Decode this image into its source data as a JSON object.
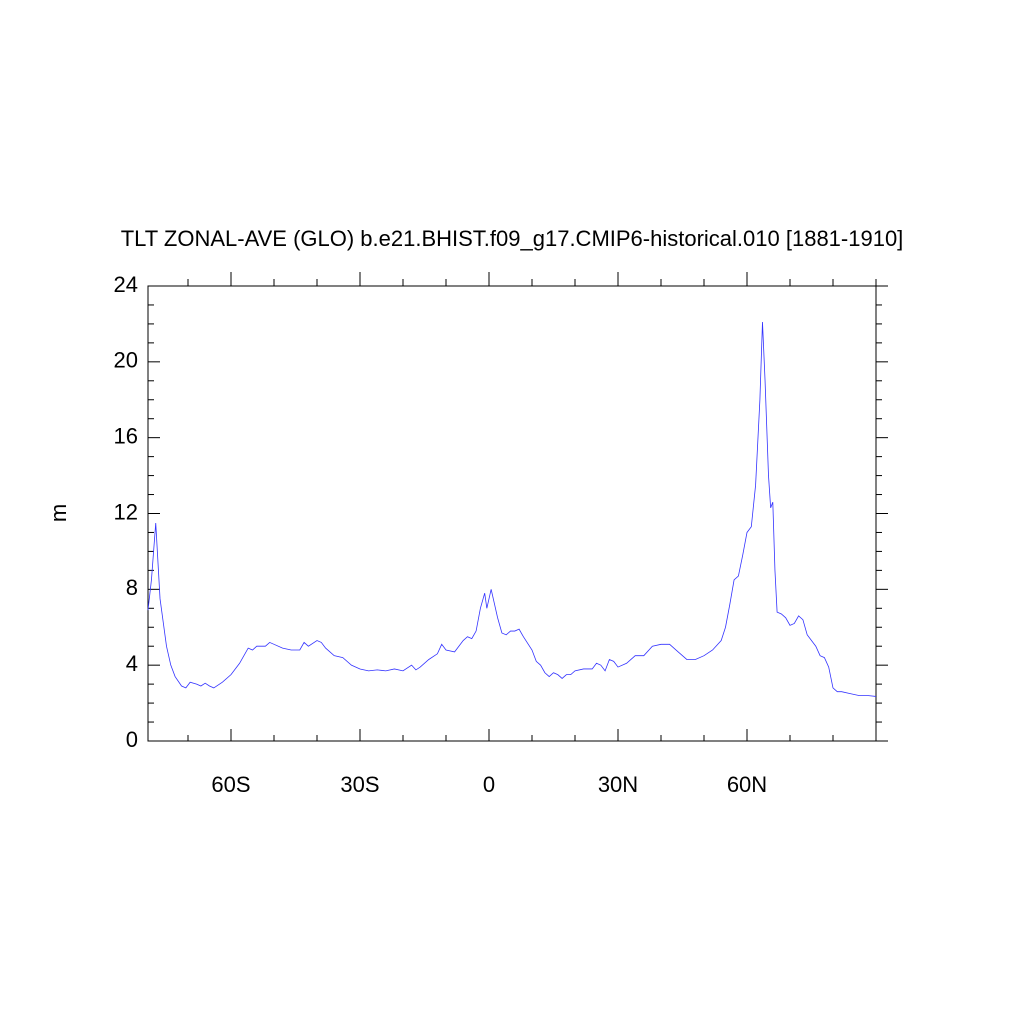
{
  "chart_data": {
    "type": "line",
    "title": "TLT ZONAL-AVE (GLO) b.e21.BHIST.f09_g17.CMIP6-historical.010 [1881-1910]",
    "ylabel": "m",
    "x": [
      -79.3,
      -78.5,
      -77.5,
      -76.5,
      -75,
      -74,
      -73,
      -71.5,
      -70.5,
      -69.5,
      -68,
      -67,
      -66,
      -65,
      -64,
      -62,
      -60,
      -58,
      -56,
      -55,
      -54,
      -52,
      -51,
      -50,
      -48,
      -46,
      -44,
      -43,
      -42,
      -40,
      -39,
      -38,
      -36,
      -34,
      -32,
      -30,
      -28,
      -26,
      -24,
      -22,
      -20,
      -18,
      -17,
      -16,
      -14,
      -12,
      -11,
      -10,
      -8,
      -6,
      -5,
      -4,
      -3,
      -2,
      -1,
      -0.5,
      0.5,
      2,
      3,
      4,
      5,
      6,
      7,
      8,
      10,
      11,
      12,
      13,
      14,
      15,
      16,
      17,
      18,
      19,
      20,
      22,
      24,
      25,
      26,
      27,
      28,
      29,
      30,
      32,
      34,
      36,
      38,
      40,
      42,
      44,
      46,
      48,
      50,
      52,
      54,
      55,
      56,
      57,
      58,
      59,
      60,
      61,
      62,
      63,
      63.6,
      64.2,
      65,
      65.5,
      66,
      66.5,
      67,
      68,
      69,
      70,
      71,
      72,
      73,
      74,
      76,
      77,
      78,
      79,
      80,
      81,
      82,
      84,
      86,
      88,
      90
    ],
    "series": [
      {
        "color": "#3333ff",
        "values": [
          6.9,
          8.5,
          11.5,
          7.5,
          5,
          4,
          3.4,
          2.9,
          2.8,
          3.1,
          3.0,
          2.9,
          3.05,
          2.9,
          2.8,
          3.1,
          3.5,
          4.1,
          4.9,
          4.8,
          5.0,
          5.0,
          5.2,
          5.1,
          4.9,
          4.8,
          4.8,
          5.2,
          5.0,
          5.3,
          5.2,
          4.9,
          4.5,
          4.4,
          4.0,
          3.8,
          3.7,
          3.75,
          3.7,
          3.8,
          3.7,
          4.0,
          3.75,
          3.9,
          4.3,
          4.6,
          5.1,
          4.8,
          4.7,
          5.3,
          5.5,
          5.4,
          5.8,
          7.0,
          7.8,
          7.0,
          8.0,
          6.5,
          5.7,
          5.6,
          5.8,
          5.8,
          5.9,
          5.5,
          4.8,
          4.2,
          4.0,
          3.6,
          3.4,
          3.6,
          3.5,
          3.3,
          3.5,
          3.5,
          3.7,
          3.8,
          3.8,
          4.1,
          4.0,
          3.7,
          4.3,
          4.2,
          3.9,
          4.1,
          4.5,
          4.5,
          5.0,
          5.1,
          5.1,
          4.7,
          4.3,
          4.3,
          4.5,
          4.8,
          5.3,
          6.0,
          7.2,
          8.5,
          8.7,
          9.8,
          11.0,
          11.3,
          13.5,
          18,
          22.1,
          19,
          14,
          12.3,
          12.6,
          9,
          6.8,
          6.7,
          6.5,
          6.1,
          6.2,
          6.6,
          6.4,
          5.6,
          5.0,
          4.5,
          4.4,
          3.9,
          2.8,
          2.6,
          2.6,
          2.5,
          2.4,
          2.4,
          2.35
        ]
      }
    ],
    "xlim": [
      -79.3,
      90
    ],
    "xticks": [
      {
        "value": -60,
        "label": "60S"
      },
      {
        "value": -30,
        "label": "30S"
      },
      0,
      {
        "value": 30,
        "label": "30N"
      },
      {
        "value": 60,
        "label": "60N"
      }
    ],
    "xminorticks": [
      -70,
      -50,
      -40,
      -20,
      -10,
      10,
      20,
      40,
      50,
      70,
      80,
      90
    ],
    "ylim": [
      0,
      24
    ],
    "yticks": [
      0,
      4,
      8,
      12,
      16,
      20,
      24
    ],
    "yminorticks": [
      1,
      2,
      3,
      5,
      6,
      7,
      9,
      10,
      11,
      13,
      14,
      15,
      17,
      18,
      19,
      21,
      22,
      23
    ]
  }
}
